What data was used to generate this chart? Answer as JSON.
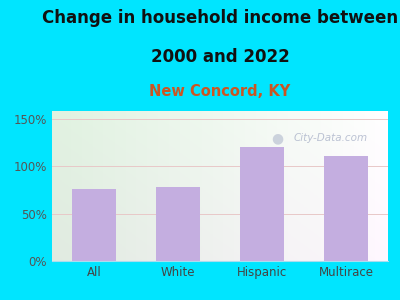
{
  "title_line1": "Change in household income between",
  "title_line2": "2000 and 2022",
  "subtitle": "New Concord, KY",
  "categories": [
    "All",
    "White",
    "Hispanic",
    "Multirace"
  ],
  "values": [
    76,
    78,
    120,
    111
  ],
  "bar_color": "#c4aee0",
  "title_fontsize": 12,
  "subtitle_fontsize": 10.5,
  "subtitle_color": "#cc5522",
  "title_color": "#111111",
  "bg_outer": "#00e5ff",
  "yticks": [
    0,
    50,
    100,
    150
  ],
  "ylim": [
    0,
    158
  ],
  "grid_color": "#e8c8c8",
  "watermark": "City-Data.com",
  "watermark_color": "#b0b8cc",
  "tick_label_color": "#555555",
  "xtick_label_color": "#444444"
}
